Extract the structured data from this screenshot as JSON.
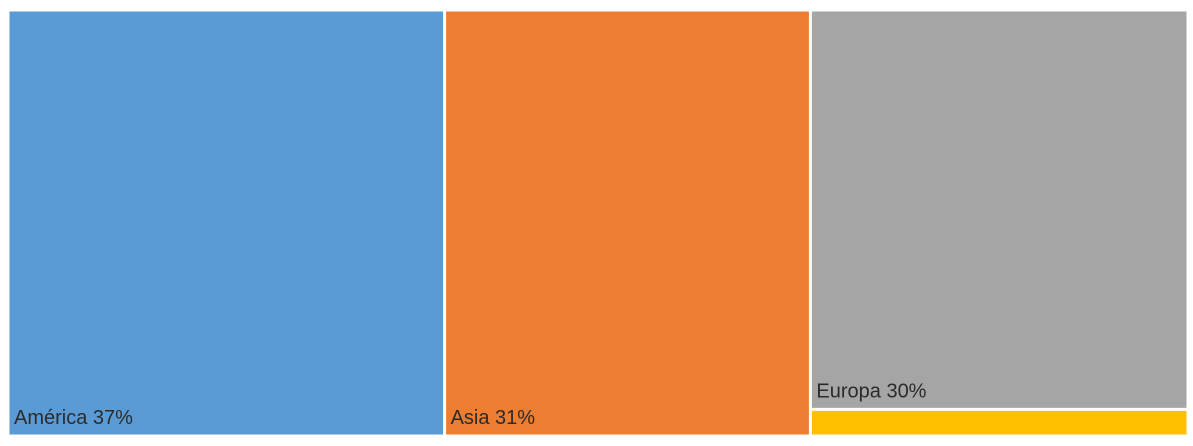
{
  "chart_data": {
    "type": "treemap",
    "title": "",
    "categories": [
      "América",
      "Asia",
      "Europa",
      ""
    ],
    "values": [
      37,
      31,
      30,
      2
    ],
    "labels": [
      "América 37%",
      "Asia 31%",
      "Europa 30%",
      ""
    ],
    "colors": [
      "#5B9BD5",
      "#ED7D31",
      "#A5A5A5",
      "#FFC000"
    ],
    "legend": "none",
    "grid": false
  }
}
